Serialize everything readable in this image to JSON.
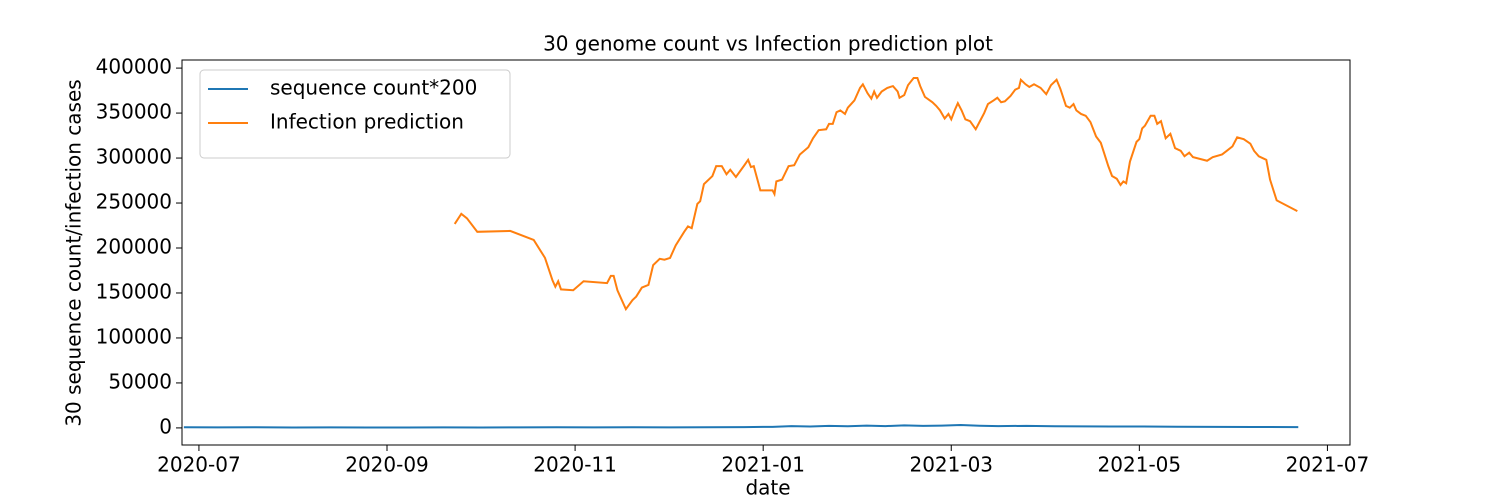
{
  "chart_data": {
    "type": "line",
    "title": "30 genome count vs Infection prediction plot",
    "x_label": "date",
    "y_label": "30 sequence count/infection cases",
    "xlim": [
      -0.18,
      12.24
    ],
    "ylim": [
      -19000,
      409000
    ],
    "xticks": [
      {
        "value": 0,
        "label": "2020-07"
      },
      {
        "value": 2,
        "label": "2020-09"
      },
      {
        "value": 4,
        "label": "2020-11"
      },
      {
        "value": 6,
        "label": "2021-01"
      },
      {
        "value": 8,
        "label": "2021-03"
      },
      {
        "value": 10,
        "label": "2021-05"
      },
      {
        "value": 12,
        "label": "2021-07"
      }
    ],
    "yticks": [
      0,
      50000,
      100000,
      150000,
      200000,
      250000,
      300000,
      350000,
      400000
    ],
    "legend": "upper left",
    "series": [
      {
        "name": "sequence count*200",
        "color": "#1f77b4",
        "x": [
          -0.16,
          0.2,
          0.6,
          1.0,
          1.4,
          1.8,
          2.2,
          2.6,
          3.0,
          3.4,
          3.8,
          4.2,
          4.6,
          5.0,
          5.4,
          5.8,
          6.1,
          6.3,
          6.5,
          6.7,
          6.9,
          7.1,
          7.3,
          7.5,
          7.7,
          7.9,
          8.1,
          8.3,
          8.5,
          8.8,
          9.1,
          9.4,
          9.7,
          10.0,
          10.4,
          10.8,
          11.2,
          11.69
        ],
        "values": [
          800,
          600,
          700,
          500,
          600,
          500,
          500,
          600,
          500,
          600,
          700,
          600,
          700,
          600,
          800,
          900,
          1200,
          2000,
          1500,
          2200,
          1800,
          2500,
          2000,
          2800,
          2200,
          2600,
          3200,
          2400,
          2000,
          2300,
          1900,
          1700,
          1500,
          1600,
          1300,
          1200,
          1000,
          900
        ]
      },
      {
        "name": "Infection prediction",
        "color": "#ff7f0e",
        "x": [
          2.72,
          2.79,
          2.85,
          2.96,
          3.31,
          3.56,
          3.68,
          3.76,
          3.79,
          3.82,
          3.85,
          3.98,
          4.09,
          4.34,
          4.38,
          4.41,
          4.45,
          4.54,
          4.61,
          4.65,
          4.71,
          4.78,
          4.83,
          4.9,
          4.95,
          5.01,
          5.07,
          5.16,
          5.2,
          5.24,
          5.3,
          5.33,
          5.37,
          5.46,
          5.5,
          5.56,
          5.61,
          5.65,
          5.71,
          5.8,
          5.84,
          5.87,
          5.9,
          5.97,
          6.1,
          6.12,
          6.14,
          6.2,
          6.27,
          6.33,
          6.39,
          6.48,
          6.53,
          6.59,
          6.67,
          6.7,
          6.74,
          6.78,
          6.82,
          6.87,
          6.9,
          6.97,
          7.03,
          7.06,
          7.11,
          7.15,
          7.18,
          7.21,
          7.26,
          7.32,
          7.38,
          7.43,
          7.45,
          7.5,
          7.54,
          7.6,
          7.64,
          7.67,
          7.72,
          7.8,
          7.84,
          7.88,
          7.93,
          7.97,
          8.0,
          8.04,
          8.07,
          8.11,
          8.15,
          8.2,
          8.26,
          8.31,
          8.35,
          8.39,
          8.45,
          8.49,
          8.53,
          8.57,
          8.63,
          8.68,
          8.72,
          8.74,
          8.79,
          8.83,
          8.88,
          8.95,
          9.01,
          9.06,
          9.12,
          9.16,
          9.22,
          9.26,
          9.3,
          9.33,
          9.38,
          9.43,
          9.48,
          9.54,
          9.59,
          9.63,
          9.67,
          9.71,
          9.76,
          9.8,
          9.83,
          9.86,
          9.9,
          9.97,
          10.0,
          10.03,
          10.06,
          10.12,
          10.16,
          10.19,
          10.23,
          10.28,
          10.33,
          10.38,
          10.44,
          10.48,
          10.53,
          10.57,
          10.72,
          10.78,
          10.88,
          10.93,
          10.99,
          11.04,
          11.11,
          11.18,
          11.22,
          11.27,
          11.35,
          11.39,
          11.46,
          11.68
        ],
        "values": [
          226700,
          238000,
          233000,
          218000,
          219000,
          209000,
          189000,
          164000,
          157000,
          163000,
          154000,
          153000,
          163000,
          161000,
          169000,
          169000,
          153000,
          132000,
          142000,
          146000,
          156000,
          159000,
          181000,
          188000,
          187000,
          189000,
          203000,
          218000,
          224000,
          222000,
          249000,
          252000,
          271000,
          280000,
          291000,
          291000,
          282000,
          287000,
          279000,
          292000,
          298000,
          290000,
          291000,
          264000,
          264000,
          260000,
          274000,
          276000,
          291000,
          292000,
          304000,
          312000,
          322000,
          331000,
          332000,
          338000,
          338000,
          351000,
          353000,
          349000,
          356000,
          364000,
          378000,
          382000,
          372000,
          366000,
          374000,
          367000,
          374000,
          378000,
          380000,
          374000,
          367000,
          370000,
          381000,
          389000,
          389000,
          380000,
          368000,
          362000,
          358000,
          353000,
          344000,
          349000,
          343000,
          354000,
          361000,
          353000,
          343000,
          341000,
          332000,
          342000,
          350000,
          360000,
          364000,
          367000,
          362000,
          363000,
          369000,
          376000,
          378000,
          387000,
          382000,
          379000,
          382000,
          378000,
          371000,
          381000,
          387000,
          377000,
          358000,
          356000,
          360000,
          353000,
          349000,
          347000,
          340000,
          324000,
          317000,
          304000,
          291000,
          280000,
          277000,
          270000,
          274000,
          272000,
          296000,
          318000,
          321000,
          333000,
          336000,
          347000,
          347000,
          338000,
          341000,
          322000,
          327000,
          311000,
          308000,
          302000,
          306000,
          301000,
          297000,
          301000,
          304000,
          308000,
          313000,
          323000,
          321000,
          316000,
          308000,
          302000,
          298000,
          276000,
          253000,
          241000
        ]
      }
    ]
  }
}
